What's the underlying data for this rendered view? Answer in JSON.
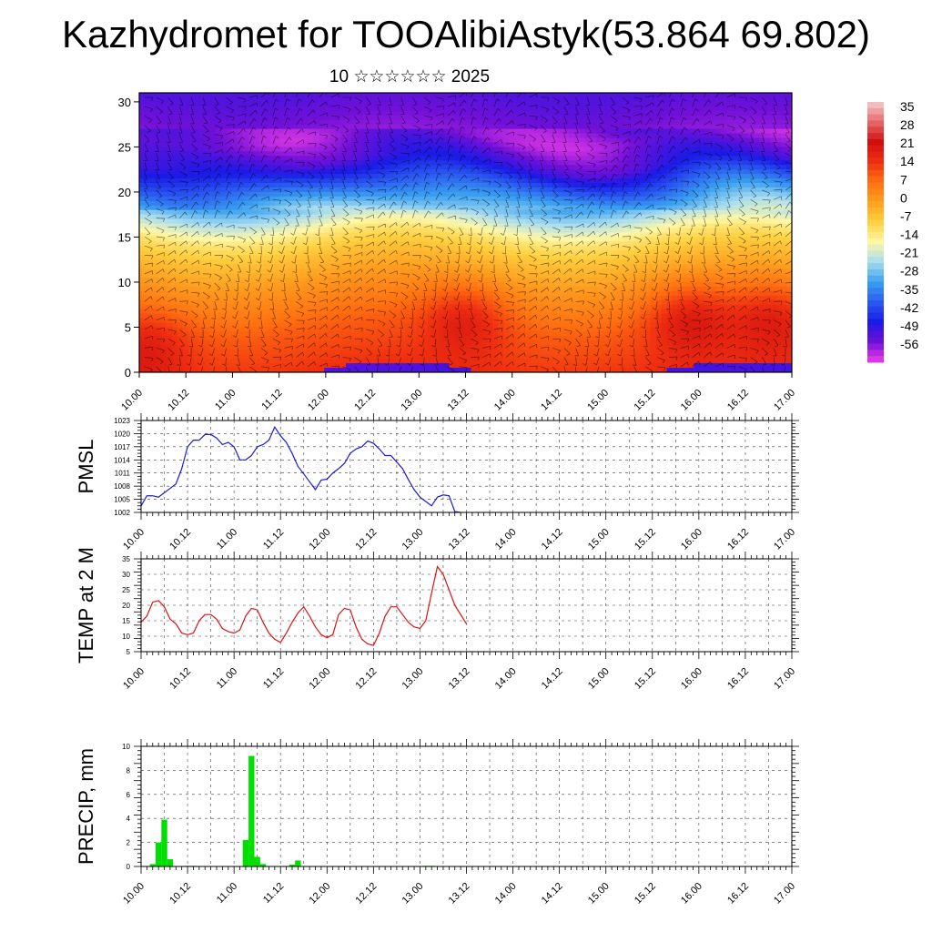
{
  "header": {
    "title": "Kazhydromet for TOOAlibiAstyk(53.864 69.802)",
    "subtitle": "10 ☆☆☆☆☆☆ 2025"
  },
  "time_labels": [
    "10.00",
    "10.12",
    "11.00",
    "11.12",
    "12.00",
    "12.12",
    "13.00",
    "13.12",
    "14.00",
    "14.12",
    "15.00",
    "15.12",
    "16.00",
    "16.12",
    "17.00"
  ],
  "colors": {
    "pmsl_line": "#1a1ad8",
    "temp_line": "#e01010",
    "precip_bar": "#00e000",
    "grid": "#000000"
  },
  "chart_data": [
    {
      "id": "cross-section",
      "type": "heatmap",
      "title": "",
      "xlabel": "",
      "ylabel": "",
      "x": [
        "10.00",
        "10.12",
        "11.00",
        "11.12",
        "12.00",
        "12.12",
        "13.00",
        "13.12",
        "14.00",
        "14.12",
        "15.00",
        "15.12",
        "16.00",
        "16.12",
        "17.00"
      ],
      "yticks": [
        0,
        5,
        10,
        15,
        20,
        25,
        30
      ],
      "ylim": [
        0,
        31
      ],
      "colorbar": {
        "labels": [
          "35",
          "28",
          "21",
          "14",
          "7",
          "0",
          "-7",
          "-14",
          "-21",
          "-28",
          "-35",
          "-42",
          "-49",
          "-56"
        ],
        "range": [
          -63,
          42
        ],
        "colors": [
          "#ee3ee8",
          "#7010d8",
          "#1a1ae6",
          "#2a5af0",
          "#3aa0f0",
          "#a8dcf0",
          "#fff8a8",
          "#ffd040",
          "#ffa020",
          "#ff7010",
          "#f03010",
          "#d01010",
          "#e86868",
          "#f4cccc"
        ]
      },
      "temperature_profile": [
        {
          "altitude": 0,
          "value": 18
        },
        {
          "altitude": 5,
          "value": 12
        },
        {
          "altitude": 10,
          "value": 3
        },
        {
          "altitude": 13,
          "value": -4
        },
        {
          "altitude": 15,
          "value": -10
        },
        {
          "altitude": 17,
          "value": -20
        },
        {
          "altitude": 20,
          "value": -35
        },
        {
          "altitude": 23,
          "value": -50
        },
        {
          "altitude": 26,
          "value": -57
        },
        {
          "altitude": 31,
          "value": -52
        }
      ],
      "warm_cores": [
        {
          "time": 0.1,
          "altitude": 3,
          "amplitude": 8
        },
        {
          "time": 3.5,
          "altitude": 6,
          "amplitude": 10
        },
        {
          "time": 5.9,
          "altitude": 6,
          "amplitude": 11
        },
        {
          "time": 6.8,
          "altitude": 6,
          "amplitude": 10
        }
      ]
    },
    {
      "id": "pmsl",
      "type": "line",
      "ylabel": "PMSL",
      "ylim": [
        1002,
        1023
      ],
      "yticks": [
        1002,
        1005,
        1008,
        1011,
        1014,
        1017,
        1020,
        1023
      ],
      "x_start": 0,
      "x_step": 0.125,
      "series": [
        {
          "values": [
            1003.5,
            1005.8,
            1005.8,
            1005.5,
            1006.5,
            1007.5,
            1008.5,
            1012,
            1017,
            1018.5,
            1018.5,
            1019.8,
            1019.8,
            1019,
            1017.5,
            1018,
            1017,
            1014,
            1014,
            1015,
            1017,
            1017.5,
            1018.5,
            1021.5,
            1019.5,
            1018,
            1015.5,
            1012.5,
            1010.8,
            1009,
            1007.2,
            1009.4,
            1009.6,
            1011,
            1012,
            1013.2,
            1015.5,
            1016.5,
            1017,
            1018.3,
            1017.8,
            1016.5,
            1015,
            1015,
            1013.5,
            1012,
            1009.5,
            1007.2,
            1005.5,
            1004.5,
            1003.5,
            1005.5,
            1006,
            1005.8,
            1002.2,
            1002
          ]
        }
      ]
    },
    {
      "id": "temp2m",
      "type": "line",
      "ylabel": "TEMP at 2 M",
      "ylim": [
        5,
        35
      ],
      "yticks": [
        5,
        10,
        15,
        20,
        25,
        30,
        35
      ],
      "x_start": 0,
      "x_step": 0.125,
      "series": [
        {
          "values": [
            14.5,
            16.5,
            21,
            21.5,
            19.5,
            15.5,
            14,
            11,
            10.5,
            11,
            15,
            17,
            17,
            15.5,
            12.5,
            11.5,
            11,
            12,
            16.5,
            19,
            18.5,
            14.5,
            11,
            9,
            8,
            11,
            14.5,
            17.5,
            19.5,
            16.5,
            13,
            10.5,
            9.5,
            10.5,
            17,
            19,
            18.5,
            13,
            9,
            7.5,
            7,
            11,
            16.5,
            19.5,
            19.5,
            17,
            14.5,
            13,
            12.5,
            15,
            24,
            32.5,
            30,
            25,
            20,
            17,
            14
          ]
        }
      ]
    },
    {
      "id": "precip",
      "type": "bar",
      "ylabel": "PRECIP, mm",
      "ylim": [
        0,
        10
      ],
      "yticks": [
        0,
        2,
        4,
        6,
        8,
        10
      ],
      "x_start": 0,
      "x_step": 0.125,
      "values": [
        0,
        0,
        0.2,
        2,
        3.9,
        0.6,
        0,
        0,
        0.05,
        0.05,
        0,
        0,
        0,
        0,
        0,
        0,
        0,
        0,
        2.2,
        9.2,
        0.8,
        0.2,
        0,
        0,
        0,
        0,
        0.15,
        0.5,
        0,
        0,
        0,
        0,
        0,
        0,
        0,
        0,
        0,
        0,
        0,
        0,
        0,
        0,
        0,
        0,
        0,
        0,
        0,
        0,
        0,
        0.05,
        0.05,
        0,
        0,
        0,
        0,
        0
      ]
    }
  ]
}
